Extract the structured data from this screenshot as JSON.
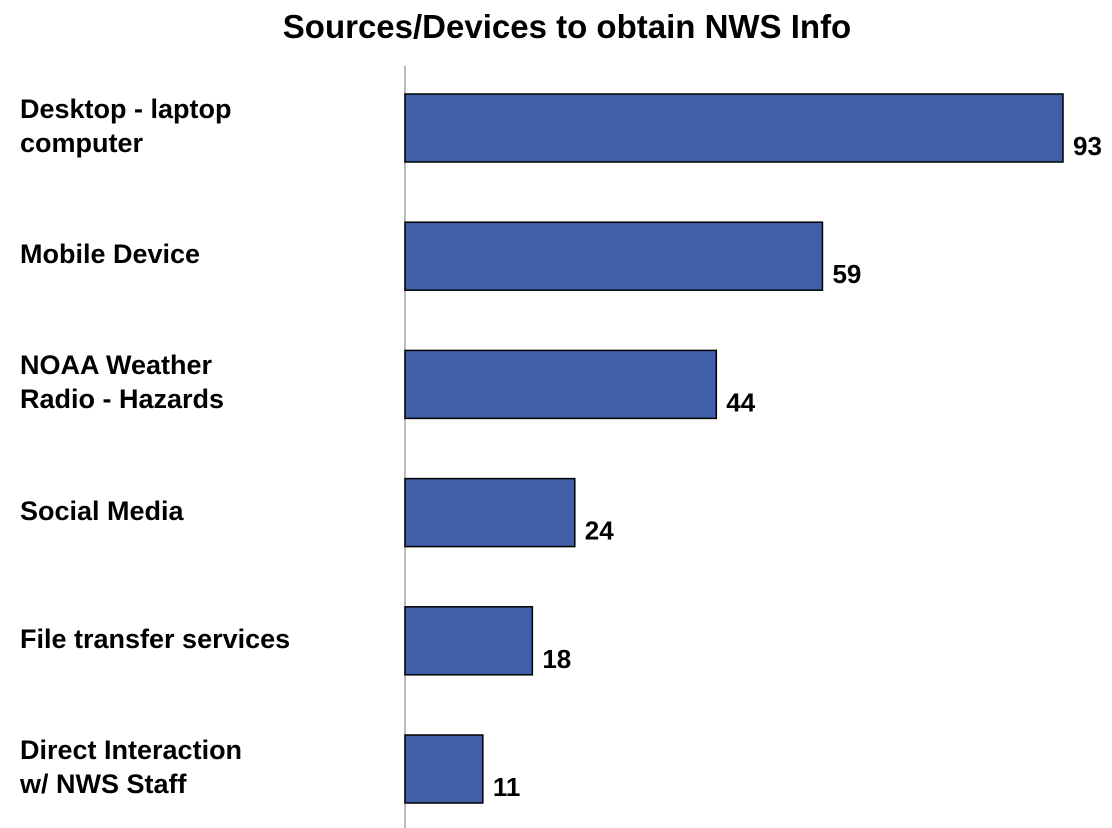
{
  "chart_data": {
    "type": "bar",
    "orientation": "horizontal",
    "title": "Sources/Devices to obtain NWS Info",
    "categories": [
      "Desktop - laptop\ncomputer",
      "Mobile Device",
      "NOAA Weather\nRadio - Hazards",
      "Social Media",
      "File transfer services",
      "Direct Interaction\nw/ NWS Staff"
    ],
    "values": [
      93,
      59,
      44,
      24,
      18,
      11
    ],
    "data_labels": [
      "93",
      "59",
      "44",
      "24",
      "18",
      "11"
    ],
    "xlabel": "",
    "ylabel": "",
    "xlim": [
      0,
      93
    ],
    "grid": false,
    "legend": "none",
    "colors": {
      "bar": "#3F5FA8",
      "axis": "#A6A6A6"
    }
  }
}
